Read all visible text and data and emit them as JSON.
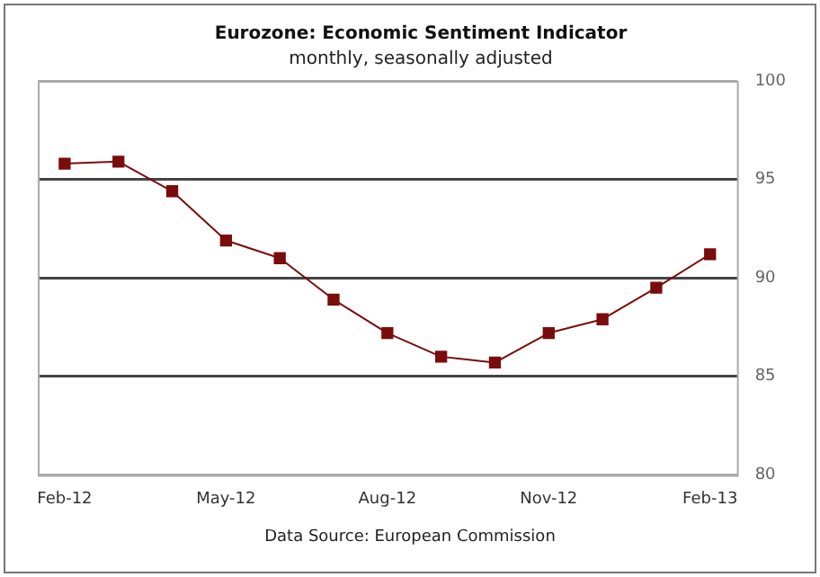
{
  "chart_data": {
    "type": "line",
    "title": "Eurozone: Economic Sentiment Indicator",
    "subtitle": "monthly, seasonally adjusted",
    "categories": [
      "Feb-12",
      null,
      null,
      "May-12",
      null,
      null,
      "Aug-12",
      null,
      null,
      "Nov-12",
      null,
      null,
      "Feb-13"
    ],
    "series": [
      {
        "color": "#7a0c0c",
        "values": [
          95.8,
          95.9,
          94.4,
          91.9,
          91.0,
          88.9,
          87.2,
          86.0,
          85.7,
          87.2,
          87.9,
          89.5,
          91.2
        ]
      }
    ],
    "ylim": [
      80,
      100
    ],
    "yticks": [
      80,
      85,
      90,
      95,
      100
    ],
    "grid": "y",
    "legend": false,
    "marker": "square",
    "line_style": "solid",
    "annotations": [
      "Data Source: European Commission"
    ]
  }
}
